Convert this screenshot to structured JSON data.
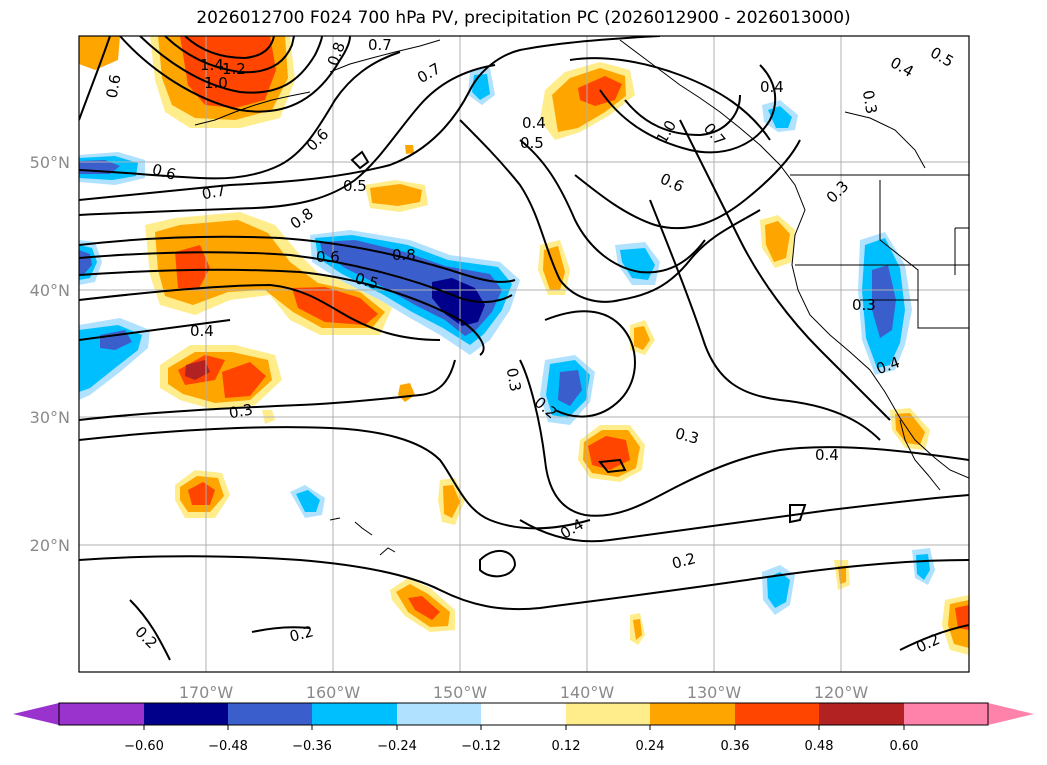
{
  "title": "2026012700 F024 700 hPa PV, precipitation PC (2026012900 - 2026013000)",
  "axes": {
    "lon_ticks": [
      "170°W",
      "160°W",
      "150°W",
      "140°W",
      "130°W",
      "120°W"
    ],
    "lat_ticks": [
      "50°N",
      "40°N",
      "30°N",
      "20°N"
    ]
  },
  "colorbar": {
    "tick_labels": [
      "−0.60",
      "−0.48",
      "−0.36",
      "−0.24",
      "−0.12",
      "0.12",
      "0.24",
      "0.36",
      "0.48",
      "0.60"
    ],
    "colors": {
      "below_min": "#9a32cd",
      "bins": [
        "#00008b",
        "#3a5fcd",
        "#00bfff",
        "#b0e2ff",
        "#ffffff",
        "#ffec8b",
        "#ffa500",
        "#ff4500",
        "#b22222"
      ],
      "above_max": "#ff82ab"
    }
  },
  "contour_labels": [
    "1.4",
    "1.2",
    "1.0",
    "0.6",
    "0.7",
    "0.8",
    "0.7",
    "0.4",
    "0.5",
    "1.0",
    "0.7",
    "0.4",
    "0.4",
    "0.5",
    "0.3",
    "0.6",
    "0.5",
    "0.6",
    "0.7",
    "0.8",
    "0.6",
    "0.8",
    "0.5",
    "0.3",
    "0.6",
    "0.4",
    "0.3",
    "0.4",
    "0.3",
    "0.2",
    "0.3",
    "0.4",
    "0.3",
    "0.4",
    "0.2",
    "0.2",
    "0.2",
    "0.2"
  ]
}
